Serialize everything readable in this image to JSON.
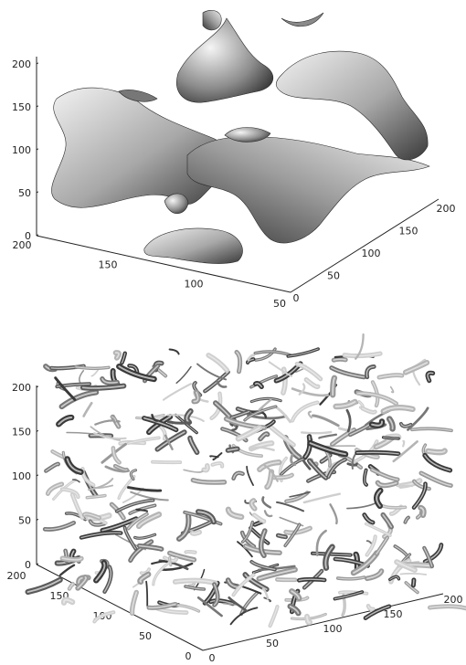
{
  "chart_data": [
    {
      "type": "surface3d",
      "title": "",
      "xlabel": "",
      "ylabel": "",
      "zlabel": "",
      "axis_ranges": {
        "x": [
          0,
          200
        ],
        "y": [
          0,
          200
        ],
        "z": [
          0,
          200
        ]
      },
      "ticks": {
        "z": [
          "0",
          "50",
          "100",
          "150",
          "200"
        ],
        "left": [
          "200",
          "150",
          "100",
          "50"
        ],
        "right": [
          "0",
          "50",
          "100",
          "150",
          "200"
        ]
      },
      "grid": false,
      "rendering": "smooth large-scale isosurface, gray shading"
    },
    {
      "type": "surface3d",
      "title": "",
      "xlabel": "",
      "ylabel": "",
      "zlabel": "",
      "axis_ranges": {
        "x": [
          0,
          200
        ],
        "y": [
          0,
          200
        ],
        "z": [
          0,
          200
        ]
      },
      "ticks": {
        "z": [
          "0",
          "50",
          "100",
          "150",
          "200"
        ],
        "left": [
          "200",
          "150",
          "100",
          "50",
          "0"
        ],
        "right": [
          "0",
          "50",
          "100",
          "150",
          "200"
        ]
      },
      "grid": false,
      "rendering": "dense small-scale vortex-tube isosurface, gray shading"
    }
  ],
  "colors": {
    "surface_light": "#e6e6e6",
    "surface_mid": "#9a9a9a",
    "surface_dark": "#3c3c3c",
    "axis": "#222222"
  }
}
